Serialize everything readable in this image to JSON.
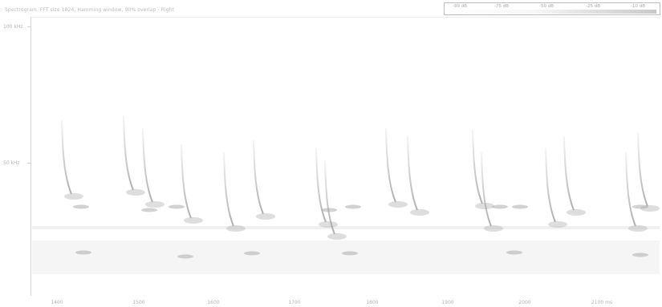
{
  "header": {
    "title": "Spectrogram. FFT size 1024, Hamming window, 90% overlap - Right"
  },
  "legend": {
    "labels": [
      "-99 dB",
      "-75 dB",
      "-50 dB",
      "-25 dB",
      "-10 dB"
    ],
    "colors": {
      "low": "#ffffff",
      "high": "#c9c9c9"
    }
  },
  "axes": {
    "y_labels": [
      "100 kHz",
      "50 kHz"
    ],
    "x_labels": [
      "1400",
      "1500",
      "1600",
      "1700",
      "1800",
      "1900",
      "2000",
      "2100 ms"
    ]
  },
  "colors": {
    "background": "#ffffff",
    "ink": "#9a9a9a",
    "text": "#b4b4b4"
  }
}
